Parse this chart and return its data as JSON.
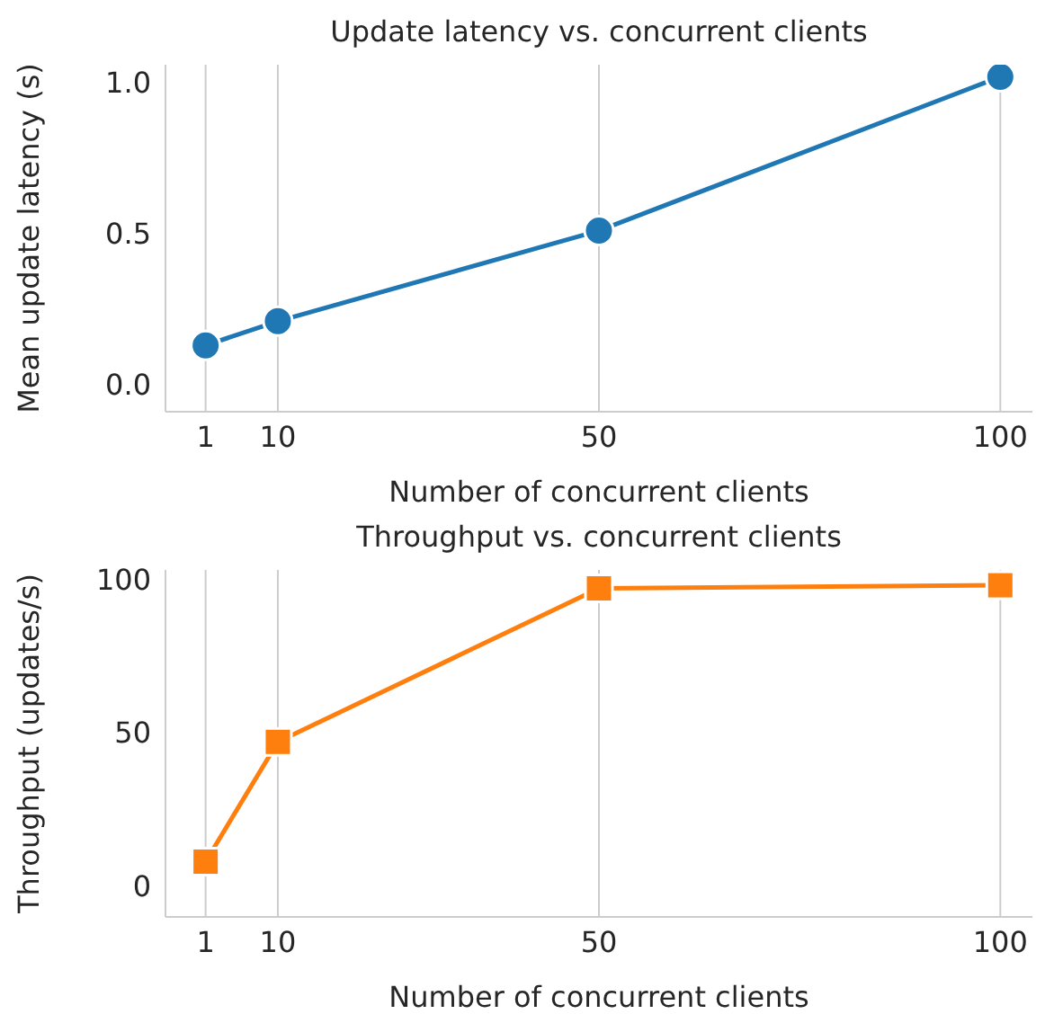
{
  "chart_data": [
    {
      "type": "line",
      "title": "Update latency vs. concurrent clients",
      "xlabel": "Number of concurrent clients",
      "ylabel": "Mean update latency (s)",
      "x": [
        1,
        10,
        50,
        100
      ],
      "xlim": [
        -4,
        104
      ],
      "xticks": [
        1,
        10,
        50,
        100
      ],
      "ylim": [
        -0.09,
        1.06
      ],
      "yticks": [
        {
          "value": 0,
          "label": "0.0"
        },
        0.5,
        {
          "value": 1,
          "label": "1.0"
        }
      ],
      "grid": true,
      "legend": false,
      "marker": "circle",
      "line_style": "solid",
      "series": [
        {
          "color": "#1f77b4",
          "values": [
            0.13,
            0.21,
            0.51,
            1.02
          ]
        }
      ]
    },
    {
      "type": "line",
      "title": "Throughput vs. concurrent clients",
      "xlabel": "Number of concurrent clients",
      "ylabel": "Throughput (updates/s)",
      "x": [
        1,
        10,
        50,
        100
      ],
      "xlim": [
        -4,
        104
      ],
      "xticks": [
        1,
        10,
        50,
        100
      ],
      "ylim": [
        -10,
        103
      ],
      "yticks": [
        0,
        50,
        100
      ],
      "grid": true,
      "legend": false,
      "marker": "square",
      "line_style": "solid",
      "series": [
        {
          "color": "#ff7f0e",
          "values": [
            8,
            47,
            97,
            98
          ]
        }
      ]
    }
  ]
}
